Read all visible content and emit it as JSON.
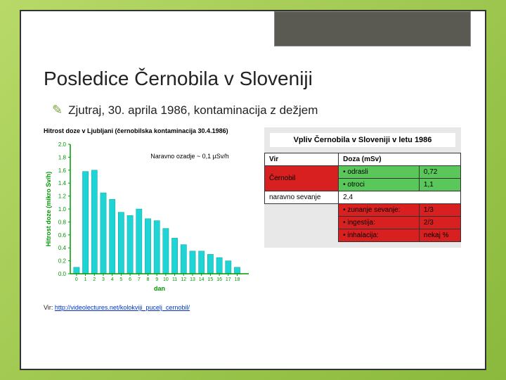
{
  "title": "Posledice Černobila v Sloveniji",
  "bullet": {
    "text": "Zjutraj, 30. aprila 1986, kontaminacija z dežjem"
  },
  "chart": {
    "type": "bar",
    "title": "Hitrost doze v Ljubljani (černobilska kontaminacija 30.4.1986)",
    "xlabel": "dan",
    "ylabel": "Hitrost doze (mikro Sv/h)",
    "annotation": "Naravno ozadje ~ 0,1 µSv/h",
    "x_values": [
      0,
      1,
      2,
      3,
      4,
      5,
      6,
      7,
      8,
      9,
      10,
      11,
      12,
      13,
      14,
      15,
      16,
      17,
      18
    ],
    "y_values": [
      0.1,
      1.58,
      1.6,
      1.25,
      1.15,
      0.95,
      0.9,
      1.0,
      0.85,
      0.82,
      0.7,
      0.55,
      0.45,
      0.35,
      0.35,
      0.3,
      0.25,
      0.2,
      0.1
    ],
    "ylim": [
      0,
      2.0
    ],
    "ytick_step": 0.2,
    "xlim": [
      -1,
      19
    ],
    "bar_color": "#1fd4d4",
    "bar_border": "#0aa2a2",
    "axis_color": "#009900",
    "text_color": "#009900",
    "background": "#ffffff",
    "annotation_color": "#000000",
    "label_fontsize": 9
  },
  "right": {
    "title": "Vpliv Černobila v Sloveniji v letu 1986",
    "header_vir": "Vir",
    "header_doza": "Doza (mSv)",
    "chernobyl_label": "Černobil",
    "chernobyl_sub1_label": "• odrasli",
    "chernobyl_sub1_val": "0,72",
    "chernobyl_sub2_label": "• otroci",
    "chernobyl_sub2_val": "1,1",
    "natural_label": "naravno sevanje",
    "natural_val": "2,4",
    "breakdown1_label": "• zunanje sevanje:",
    "breakdown1_val": "1/3",
    "breakdown2_label": "• ingestija:",
    "breakdown2_val": "2/3",
    "breakdown3_label": "• inhalacija:",
    "breakdown3_val": "nekaj %",
    "colors": {
      "header_bg": "#ffffff",
      "chernobyl_bg": "#d92020",
      "sub_bg": "#5ac75a",
      "natural_bg": "#ffffff",
      "breakdown_bg": "#d92020",
      "panel_bg": "#e8e8e8"
    }
  },
  "source": {
    "prefix": "Vir: ",
    "link": "http://videolectures.net/kolokviji_pucelj_cernobil/"
  }
}
